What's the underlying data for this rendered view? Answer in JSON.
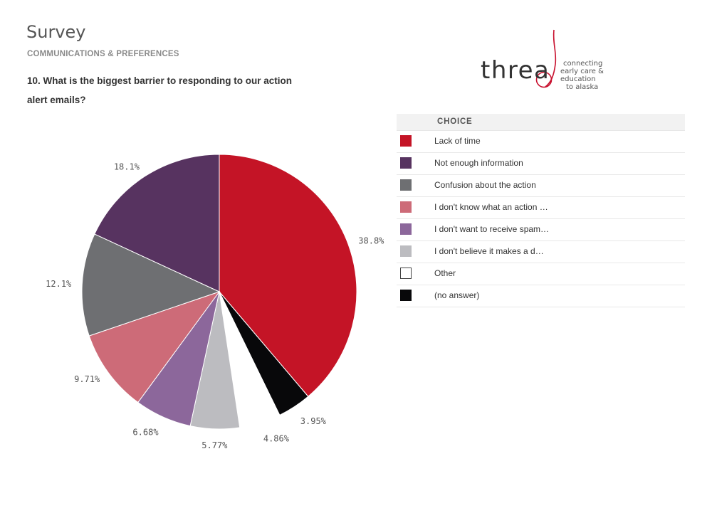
{
  "header": {
    "title": "Survey",
    "section": "COMMUNICATIONS & PREFERENCES",
    "question": "10. What is the biggest barrier to responding to our action alert emails?"
  },
  "logo": {
    "word": "threa",
    "tagline": [
      "connecting",
      "early care & education",
      "to alaska"
    ],
    "accent_color": "#c8102e"
  },
  "legend": {
    "header": "CHOICE"
  },
  "chart_data": {
    "type": "pie",
    "categories": [
      "Lack of time",
      "Not enough information",
      "Confusion about the action",
      "I don't know what an action …",
      "I don't want to receive spam…",
      "I don't believe it makes a d…",
      "Other",
      "(no answer)"
    ],
    "values": [
      38.8,
      18.1,
      12.1,
      9.71,
      6.68,
      5.77,
      4.86,
      3.95
    ],
    "labels": [
      "38.8%",
      "18.1%",
      "12.1%",
      "9.71%",
      "6.68%",
      "5.77%",
      "4.86%",
      "3.95%"
    ],
    "colors": [
      "#c41426",
      "#573360",
      "#6e6f72",
      "#cd6b78",
      "#8c679b",
      "#bcbcc0",
      "#ffffff",
      "#08080a"
    ],
    "draw_order": [
      0,
      7,
      6,
      5,
      4,
      3,
      2,
      1
    ],
    "legend_placement": "right"
  }
}
